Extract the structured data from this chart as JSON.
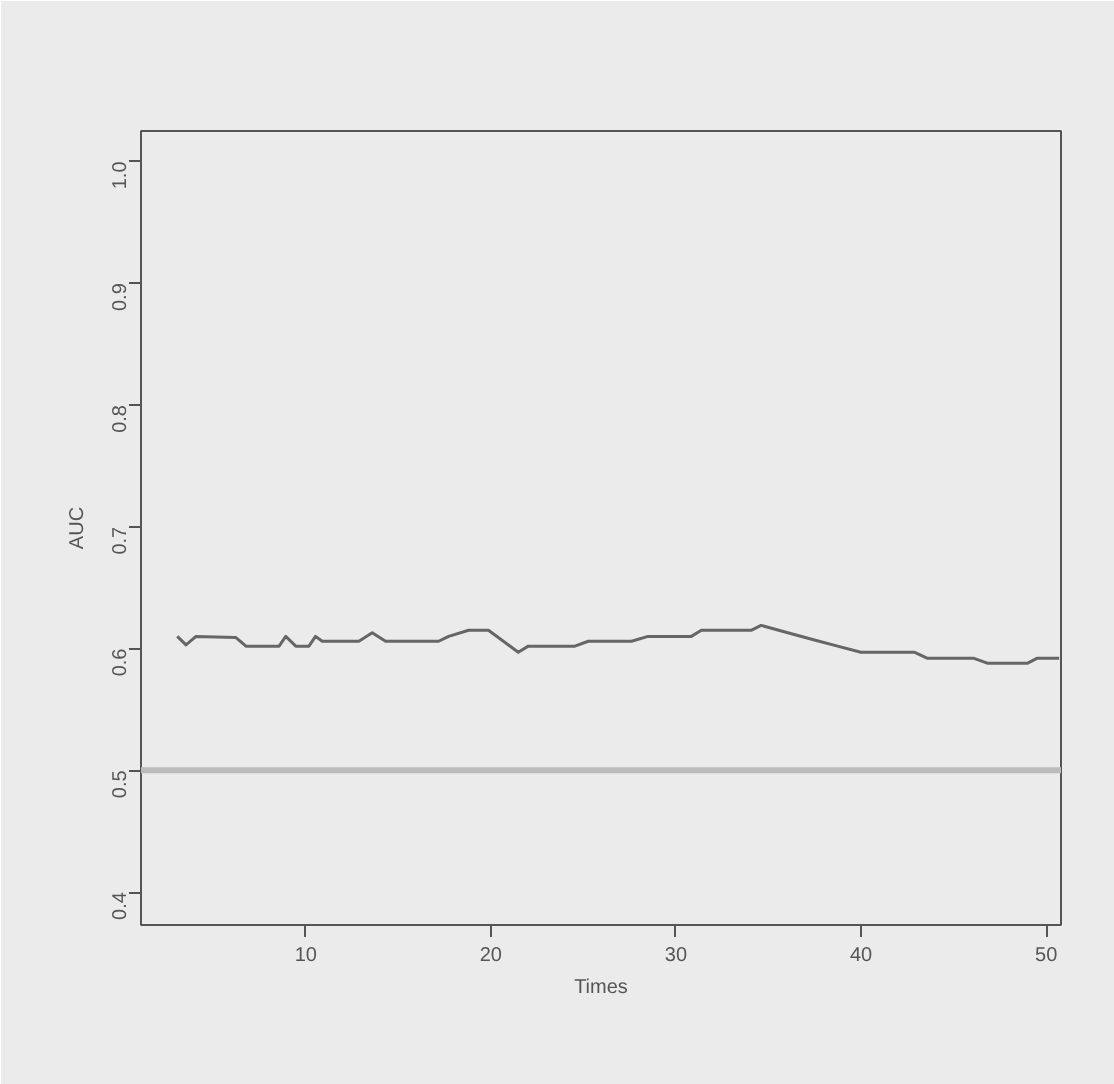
{
  "chart_data": {
    "type": "line",
    "xlabel": "Times",
    "ylabel": "AUC",
    "x": [
      3.06,
      3.53,
      4.07,
      6.23,
      6.77,
      8.56,
      8.92,
      9.46,
      10.17,
      10.53,
      10.89,
      12.87,
      13.59,
      14.31,
      17.18,
      17.72,
      18.8,
      19.87,
      21.48,
      22.02,
      24.54,
      25.26,
      27.6,
      28.49,
      30.83,
      31.37,
      34.06,
      34.6,
      36.04,
      37.48,
      38.73,
      39.99,
      42.87,
      43.59,
      46.1,
      46.82,
      49.0,
      49.5,
      50.7
    ],
    "series": [
      {
        "color": "#666666",
        "values": [
          0.61,
          0.603,
          0.61,
          0.609,
          0.602,
          0.602,
          0.61,
          0.602,
          0.602,
          0.61,
          0.606,
          0.606,
          0.613,
          0.606,
          0.606,
          0.61,
          0.615,
          0.615,
          0.597,
          0.602,
          0.602,
          0.606,
          0.606,
          0.61,
          0.61,
          0.615,
          0.615,
          0.619,
          0.613,
          0.607,
          0.602,
          0.597,
          0.597,
          0.592,
          0.592,
          0.588,
          0.588,
          0.592,
          0.592
        ]
      }
    ],
    "xlim": [
      1.1,
      50.8
    ],
    "ylim": [
      0.373,
      1.025
    ],
    "xticks": [
      10,
      20,
      30,
      40,
      50
    ],
    "yticks": [
      0.4,
      0.5,
      0.6,
      0.7,
      0.8,
      0.9,
      {
        "value": 1.0,
        "label": "1.0"
      }
    ],
    "ref_lines": [
      {
        "axis": "y",
        "value": 0.5,
        "color": "#bbbbbb"
      }
    ]
  }
}
